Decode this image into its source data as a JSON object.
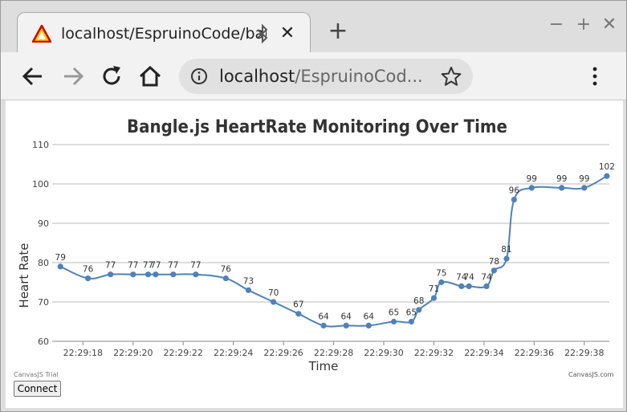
{
  "browser": {
    "tab_title": "localhost/EspruinoCode/bar",
    "url_host": "localhost",
    "url_path": "/EspruinoCod...",
    "new_tab_symbol": "+",
    "close_symbol": "✕",
    "minimize_symbol": "−",
    "maximize_symbol": "+",
    "window_close_symbol": "✕"
  },
  "page": {
    "connect_label": "Connect",
    "trial_text": "CanvasJS Trial",
    "credit_text": "CanvasJS.com"
  },
  "chart_data": {
    "type": "line",
    "title": "Bangle.js HeartRate Monitoring Over Time",
    "xlabel": "Time",
    "ylabel": "Heart Rate",
    "ylim": [
      60,
      110
    ],
    "yticks": [
      60,
      70,
      80,
      90,
      100,
      110
    ],
    "xlim": [
      "22:29:16.9",
      "22:29:39.0"
    ],
    "xticks": [
      "22:29:18",
      "22:29:20",
      "22:29:22",
      "22:29:24",
      "22:29:26",
      "22:29:28",
      "22:29:30",
      "22:29:32",
      "22:29:34",
      "22:29:36",
      "22:29:38"
    ],
    "grid": true,
    "line_color": "#4f81bc",
    "points": [
      {
        "x": "22:29:17.1",
        "y": 79
      },
      {
        "x": "22:29:18.2",
        "y": 76
      },
      {
        "x": "22:29:19.1",
        "y": 77
      },
      {
        "x": "22:29:20.0",
        "y": 77
      },
      {
        "x": "22:29:20.6",
        "y": 77
      },
      {
        "x": "22:29:20.9",
        "y": 77
      },
      {
        "x": "22:29:21.6",
        "y": 77
      },
      {
        "x": "22:29:22.5",
        "y": 77
      },
      {
        "x": "22:29:23.7",
        "y": 76
      },
      {
        "x": "22:29:24.6",
        "y": 73
      },
      {
        "x": "22:29:25.6",
        "y": 70
      },
      {
        "x": "22:29:26.6",
        "y": 67
      },
      {
        "x": "22:29:27.6",
        "y": 64
      },
      {
        "x": "22:29:28.5",
        "y": 64
      },
      {
        "x": "22:29:29.4",
        "y": 64
      },
      {
        "x": "22:29:30.4",
        "y": 65
      },
      {
        "x": "22:29:31.1",
        "y": 65
      },
      {
        "x": "22:29:31.4",
        "y": 68
      },
      {
        "x": "22:29:32.0",
        "y": 71
      },
      {
        "x": "22:29:32.3",
        "y": 75
      },
      {
        "x": "22:29:33.1",
        "y": 74
      },
      {
        "x": "22:29:33.4",
        "y": 74
      },
      {
        "x": "22:29:34.1",
        "y": 74
      },
      {
        "x": "22:29:34.4",
        "y": 78
      },
      {
        "x": "22:29:34.9",
        "y": 81
      },
      {
        "x": "22:29:35.2",
        "y": 96
      },
      {
        "x": "22:29:35.9",
        "y": 99
      },
      {
        "x": "22:29:37.1",
        "y": 99
      },
      {
        "x": "22:29:38.0",
        "y": 99
      },
      {
        "x": "22:29:38.9",
        "y": 102
      }
    ]
  }
}
